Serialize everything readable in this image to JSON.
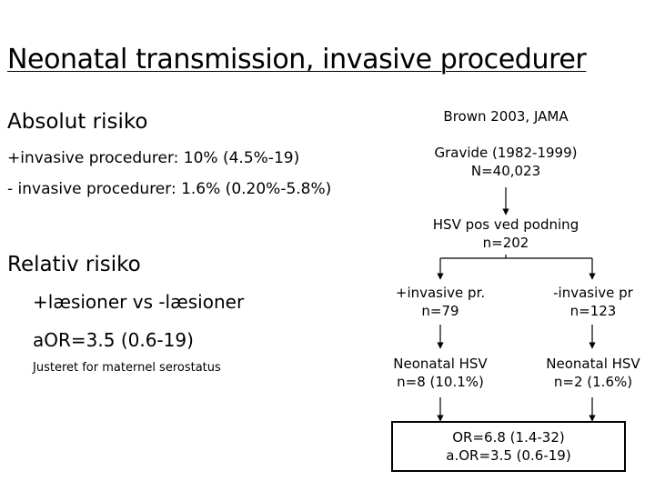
{
  "title": "Neonatal transmission, invasive procedurer",
  "left": {
    "absolut_heading": "Absolut risiko",
    "absolut_line1": "+invasive procedurer: 10% (4.5%-19)",
    "absolut_line2": "- invasive procedurer: 1.6% (0.20%-5.8%)",
    "relativ_heading": "Relativ risiko",
    "relativ_line1": "+læsioner vs -læsioner",
    "relativ_line2": "aOR=3.5 (0.6-19)",
    "relativ_note": "Justeret for maternel serostatus"
  },
  "flow": {
    "source": "Brown 2003, JAMA",
    "cohort_line1": "Gravide (1982-1999)",
    "cohort_line2": "N=40,023",
    "hsv_line1": "HSV pos ved podning",
    "hsv_line2": "n=202",
    "inv_plus_line1": "+invasive pr.",
    "inv_plus_line2": "n=79",
    "inv_minus_line1": "-invasive pr",
    "inv_minus_line2": "n=123",
    "neo_plus_line1": "Neonatal HSV",
    "neo_plus_line2": "n=8 (10.1%)",
    "neo_minus_line1": "Neonatal HSV",
    "neo_minus_line2": "n=2 (1.6%)",
    "result_line1": "OR=6.8 (1.4-32)",
    "result_line2": "a.OR=3.5 (0.6-19)"
  }
}
